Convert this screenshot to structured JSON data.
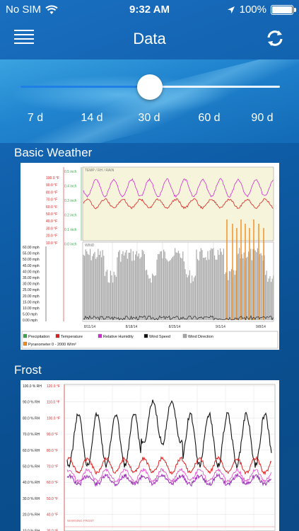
{
  "status": {
    "carrier": "No SIM",
    "time": "9:32 AM",
    "battery": "100%"
  },
  "nav": {
    "title": "Data"
  },
  "range": {
    "options": [
      "7 d",
      "14 d",
      "30 d",
      "60 d",
      "90 d"
    ],
    "selected": "30 d",
    "position": 0.5
  },
  "weather": {
    "title": "Basic Weather",
    "panel_top_label": "TEMP / RH / RAIN",
    "panel_bottom_label": "WIND",
    "rain_ticks": [
      "0.5 inch",
      "0.4 inch",
      "0.3 inch",
      "0.2 inch",
      "0.1 inch",
      "0.0 inch"
    ],
    "temp_ticks": [
      "100.0 °F",
      "90.0 °F",
      "80.0 °F",
      "70.0 °F",
      "60.0 °F",
      "50.0 °F",
      "40.0 °F",
      "30.0 °F",
      "20.0 °F",
      "10.0 °F"
    ],
    "wind_ticks": [
      "60.00 mph",
      "55.00 mph",
      "50.00 mph",
      "45.00 mph",
      "40.00 mph",
      "35.00 mph",
      "30.00 mph",
      "25.00 mph",
      "20.00 mph",
      "15.00 mph",
      "10.00 mph",
      "5.00 mph",
      "0.00 mph"
    ],
    "dates": [
      "8/11/14",
      "8/18/14",
      "8/25/14",
      "9/1/14",
      "9/8/14"
    ],
    "legend": [
      {
        "label": "Precipitation",
        "color": "#3aa64a"
      },
      {
        "label": "Temperature",
        "color": "#e02020"
      },
      {
        "label": "Relative Humidity",
        "color": "#d42ad4"
      },
      {
        "label": "Wind Speed",
        "color": "#111111"
      },
      {
        "label": "Wind Direction",
        "color": "#a8a8a8"
      },
      {
        "label": "Pyranometer 0 - 2000 W/m²",
        "color": "#f08c1a"
      }
    ]
  },
  "frost": {
    "title": "Frost",
    "rh_ticks": [
      "100.0 % RH",
      "90.0 % RH",
      "80.0 % RH",
      "70.0 % RH",
      "60.0 % RH",
      "50.0 % RH",
      "40.0 % RH",
      "30.0 % RH",
      "20.0 % RH",
      "10.0 % RH"
    ],
    "temp_ticks": [
      "120.0 °F",
      "110.0 °F",
      "100.0 °F",
      "90.0 °F",
      "80.0 °F",
      "70.0 °F",
      "60.0 °F",
      "50.0 °F",
      "40.0 °F",
      "30.0 °F"
    ],
    "warning_label": "WARNING FROST"
  }
}
